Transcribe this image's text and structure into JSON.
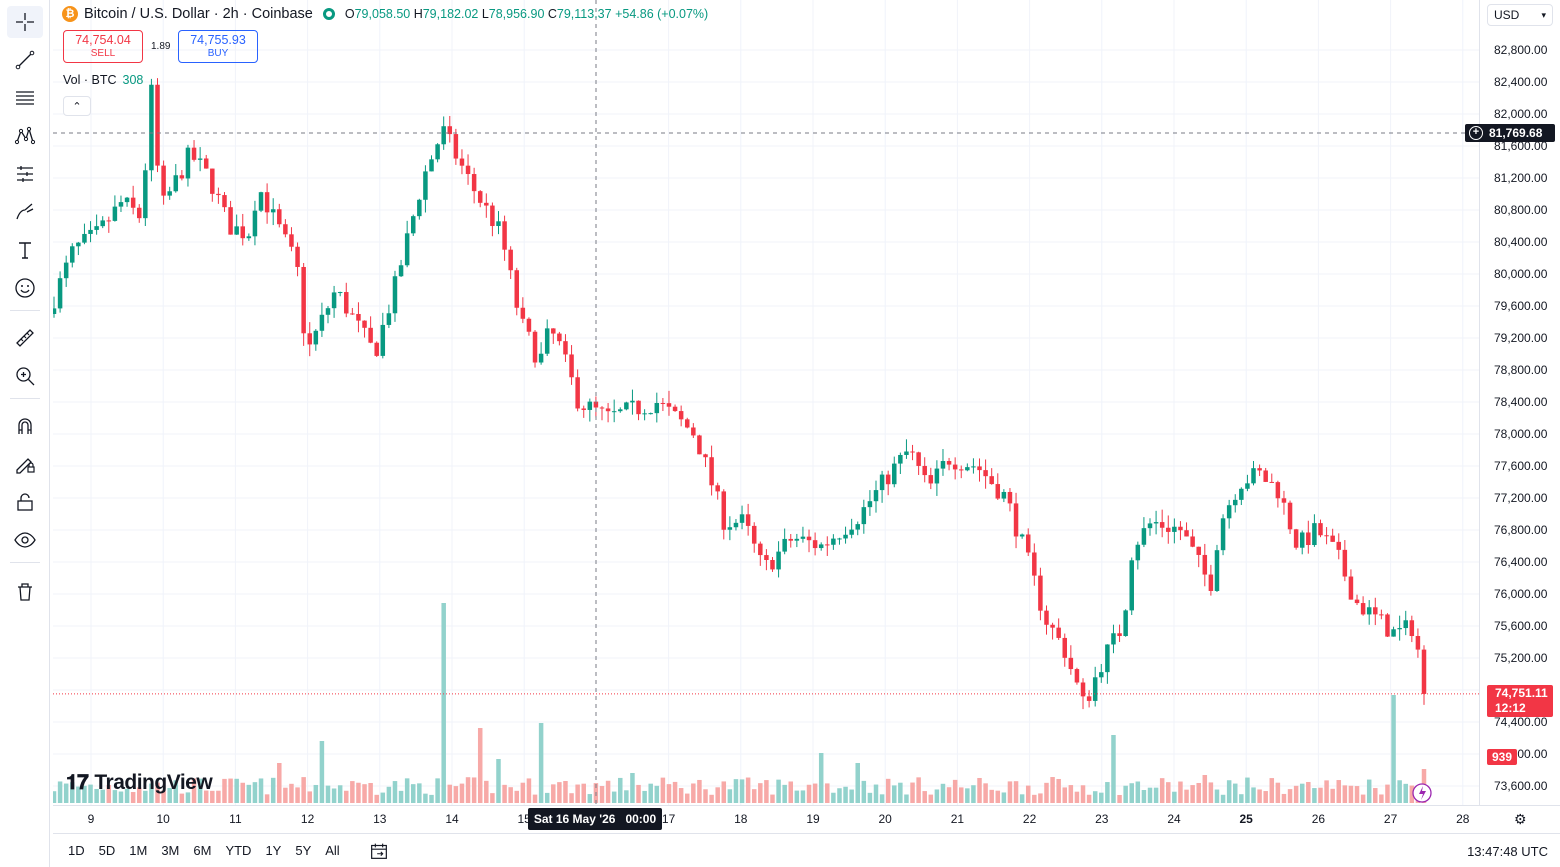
{
  "header": {
    "symbol_title": "Bitcoin / U.S. Dollar · 2h · Coinbase",
    "open_label": "O",
    "open": "79,058.50",
    "high_label": "H",
    "high": "79,182.02",
    "low_label": "L",
    "low": "78,956.90",
    "close_label": "C",
    "close": "79,113.37",
    "change": "+54.86 (+0.07%)"
  },
  "trade": {
    "sell_price": "74,754.04",
    "sell_label": "SELL",
    "spread": "1.89",
    "buy_price": "74,755.93",
    "buy_label": "BUY"
  },
  "volume_legend": {
    "label": "Vol · BTC",
    "value": "308"
  },
  "currency": "USD",
  "price_ticks": [
    "82,800.00",
    "82,400.00",
    "82,000.00",
    "81,600.00",
    "81,200.00",
    "80,800.00",
    "80,400.00",
    "80,000.00",
    "79,600.00",
    "79,200.00",
    "78,800.00",
    "78,400.00",
    "78,000.00",
    "77,600.00",
    "77,200.00",
    "76,800.00",
    "76,400.00",
    "76,000.00",
    "75,600.00",
    "75,200.00",
    "74,800.00",
    "74,400.00",
    "74,000.00",
    "73,600.00"
  ],
  "crosshair_price": "81,769.68",
  "last_price": "74,751.11",
  "countdown": "12:12",
  "last_volume": "939",
  "time_ticks": [
    "9",
    "10",
    "11",
    "12",
    "13",
    "14",
    "15",
    "17",
    "18",
    "19",
    "20",
    "21",
    "22",
    "23",
    "24",
    "25",
    "26",
    "27",
    "28"
  ],
  "crosshair_time": {
    "date": "Sat 16 May '26",
    "time": "00:00"
  },
  "ranges": [
    "1D",
    "5D",
    "1M",
    "3M",
    "6M",
    "YTD",
    "1Y",
    "5Y",
    "All"
  ],
  "clock": "13:47:48 UTC",
  "logo_text": "TradingView",
  "colors": {
    "up": "#089981",
    "down": "#f23645",
    "up_vol": "#92d2cc",
    "down_vol": "#f7a9a7"
  },
  "chart_data": {
    "type": "candlestick",
    "series_name": "",
    "y_range": [
      73400,
      83000
    ],
    "close_path": [
      [
        0,
        79700
      ],
      [
        0.2,
        80300
      ],
      [
        0.45,
        80500
      ],
      [
        0.7,
        80900
      ],
      [
        0.9,
        80700
      ],
      [
        1.0,
        82300
      ],
      [
        1.1,
        80800
      ],
      [
        1.4,
        81500
      ],
      [
        1.6,
        81200
      ],
      [
        1.8,
        80600
      ],
      [
        2.0,
        80500
      ],
      [
        2.1,
        81100
      ],
      [
        2.5,
        80100
      ],
      [
        2.6,
        79000
      ],
      [
        2.9,
        79800
      ],
      [
        3.3,
        79000
      ],
      [
        3.5,
        79800
      ],
      [
        3.8,
        81200
      ],
      [
        4.0,
        81800
      ],
      [
        4.3,
        81100
      ],
      [
        4.6,
        80500
      ],
      [
        4.8,
        79400
      ],
      [
        5.0,
        78900
      ],
      [
        5.1,
        79300
      ],
      [
        5.2,
        79100
      ],
      [
        5.4,
        78400
      ],
      [
        5.7,
        78200
      ],
      [
        6.2,
        78400
      ],
      [
        6.4,
        78200
      ],
      [
        6.6,
        78000
      ],
      [
        6.9,
        76900
      ],
      [
        7.1,
        76900
      ],
      [
        7.3,
        76300
      ],
      [
        7.6,
        76700
      ],
      [
        7.9,
        76600
      ],
      [
        8.1,
        76800
      ],
      [
        8.3,
        77000
      ],
      [
        8.6,
        77500
      ],
      [
        8.8,
        77800
      ],
      [
        9.0,
        77300
      ],
      [
        9.2,
        77700
      ],
      [
        9.5,
        77600
      ],
      [
        9.8,
        77200
      ],
      [
        10.0,
        76500
      ],
      [
        10.2,
        75700
      ],
      [
        10.4,
        75300
      ],
      [
        10.6,
        74600
      ],
      [
        10.8,
        75200
      ],
      [
        11.0,
        75600
      ],
      [
        11.1,
        76600
      ],
      [
        11.3,
        76900
      ],
      [
        11.6,
        76800
      ],
      [
        11.9,
        76100
      ],
      [
        12.0,
        76900
      ],
      [
        12.2,
        77400
      ],
      [
        12.4,
        77500
      ],
      [
        12.6,
        77300
      ],
      [
        12.8,
        76600
      ],
      [
        13.0,
        76800
      ],
      [
        13.2,
        76500
      ],
      [
        13.4,
        75900
      ],
      [
        13.6,
        75700
      ],
      [
        13.8,
        75500
      ],
      [
        14.0,
        75600
      ],
      [
        14.1,
        74800
      ]
    ]
  }
}
